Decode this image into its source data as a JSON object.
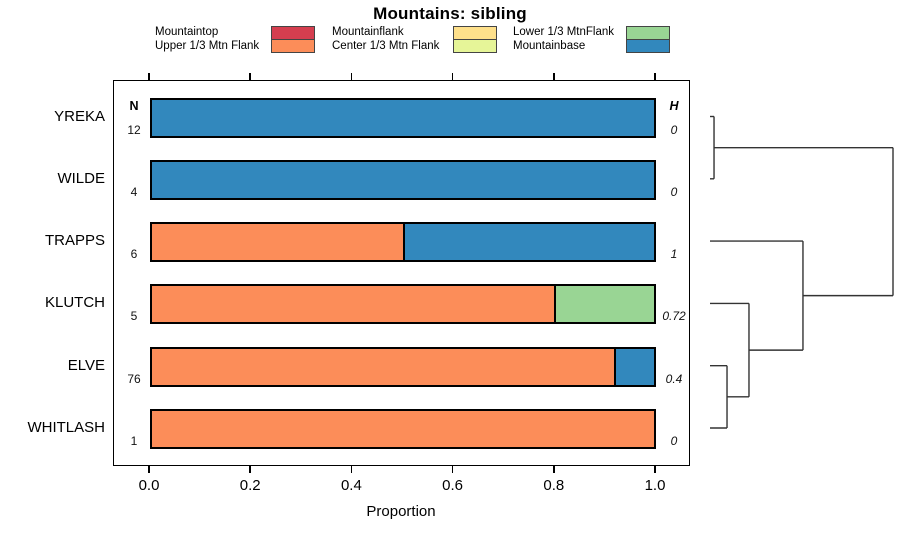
{
  "title": "Mountains: sibling",
  "legend": {
    "items": [
      {
        "label": "Mountaintop",
        "color": "#d53e4f"
      },
      {
        "label": "Upper 1/3 Mtn Flank",
        "color": "#fc8d59"
      },
      {
        "label": "Mountainflank",
        "color": "#fee08b"
      },
      {
        "label": "Center 1/3 Mtn Flank",
        "color": "#e6f598"
      },
      {
        "label": "Lower 1/3 MtnFlank",
        "color": "#99d594"
      },
      {
        "label": "Mountainbase",
        "color": "#3288bd"
      }
    ]
  },
  "columns": {
    "n_header": "N",
    "h_header": "H"
  },
  "x_axis": {
    "label": "Proportion",
    "tick_labels": [
      "0.0",
      "0.2",
      "0.4",
      "0.6",
      "0.8",
      "1.0"
    ]
  },
  "chart_data": {
    "type": "bar",
    "orientation": "horizontal",
    "stacked": true,
    "title": "Mountains: sibling",
    "xlabel": "Proportion",
    "xlim": [
      0,
      1
    ],
    "xticks": [
      0,
      0.2,
      0.4,
      0.6,
      0.8,
      1.0
    ],
    "grid": false,
    "legend_position": "top",
    "categories": [
      "YREKA",
      "WILDE",
      "TRAPPS",
      "KLUTCH",
      "ELVE",
      "WHITLASH"
    ],
    "sample_sizes": [
      12,
      4,
      6,
      5,
      76,
      1
    ],
    "h_values": [
      "0",
      "0",
      "1",
      "0.72",
      "0.4",
      "0"
    ],
    "series": [
      {
        "name": "Mountaintop",
        "color": "#d53e4f",
        "values": [
          0,
          0,
          0,
          0,
          0,
          0
        ]
      },
      {
        "name": "Upper 1/3 Mtn Flank",
        "color": "#fc8d59",
        "values": [
          0,
          0,
          0.5,
          0.8,
          0.92,
          1.0
        ]
      },
      {
        "name": "Mountainflank",
        "color": "#fee08b",
        "values": [
          0,
          0,
          0,
          0,
          0,
          0
        ]
      },
      {
        "name": "Center 1/3 Mtn Flank",
        "color": "#e6f598",
        "values": [
          0,
          0,
          0,
          0,
          0,
          0
        ]
      },
      {
        "name": "Lower 1/3 MtnFlank",
        "color": "#99d594",
        "values": [
          0,
          0,
          0,
          0.2,
          0,
          0
        ]
      },
      {
        "name": "Mountainbase",
        "color": "#3288bd",
        "values": [
          1.0,
          1.0,
          0.5,
          0,
          0.08,
          0
        ]
      }
    ],
    "dendrogram": {
      "leaves": [
        "YREKA",
        "WILDE",
        "TRAPPS",
        "KLUTCH",
        "ELVE",
        "WHITLASH"
      ],
      "merges": [
        {
          "id": "m0",
          "children": [
            "YREKA",
            "WILDE"
          ],
          "height": 0.022
        },
        {
          "id": "m1",
          "children": [
            "ELVE",
            "WHITLASH"
          ],
          "height": 0.093
        },
        {
          "id": "m2",
          "children": [
            "KLUTCH",
            "m1"
          ],
          "height": 0.213
        },
        {
          "id": "m3",
          "children": [
            "TRAPPS",
            "m2"
          ],
          "height": 0.508
        },
        {
          "id": "m4",
          "children": [
            "m0",
            "m3"
          ],
          "height": 1.0
        }
      ]
    }
  }
}
